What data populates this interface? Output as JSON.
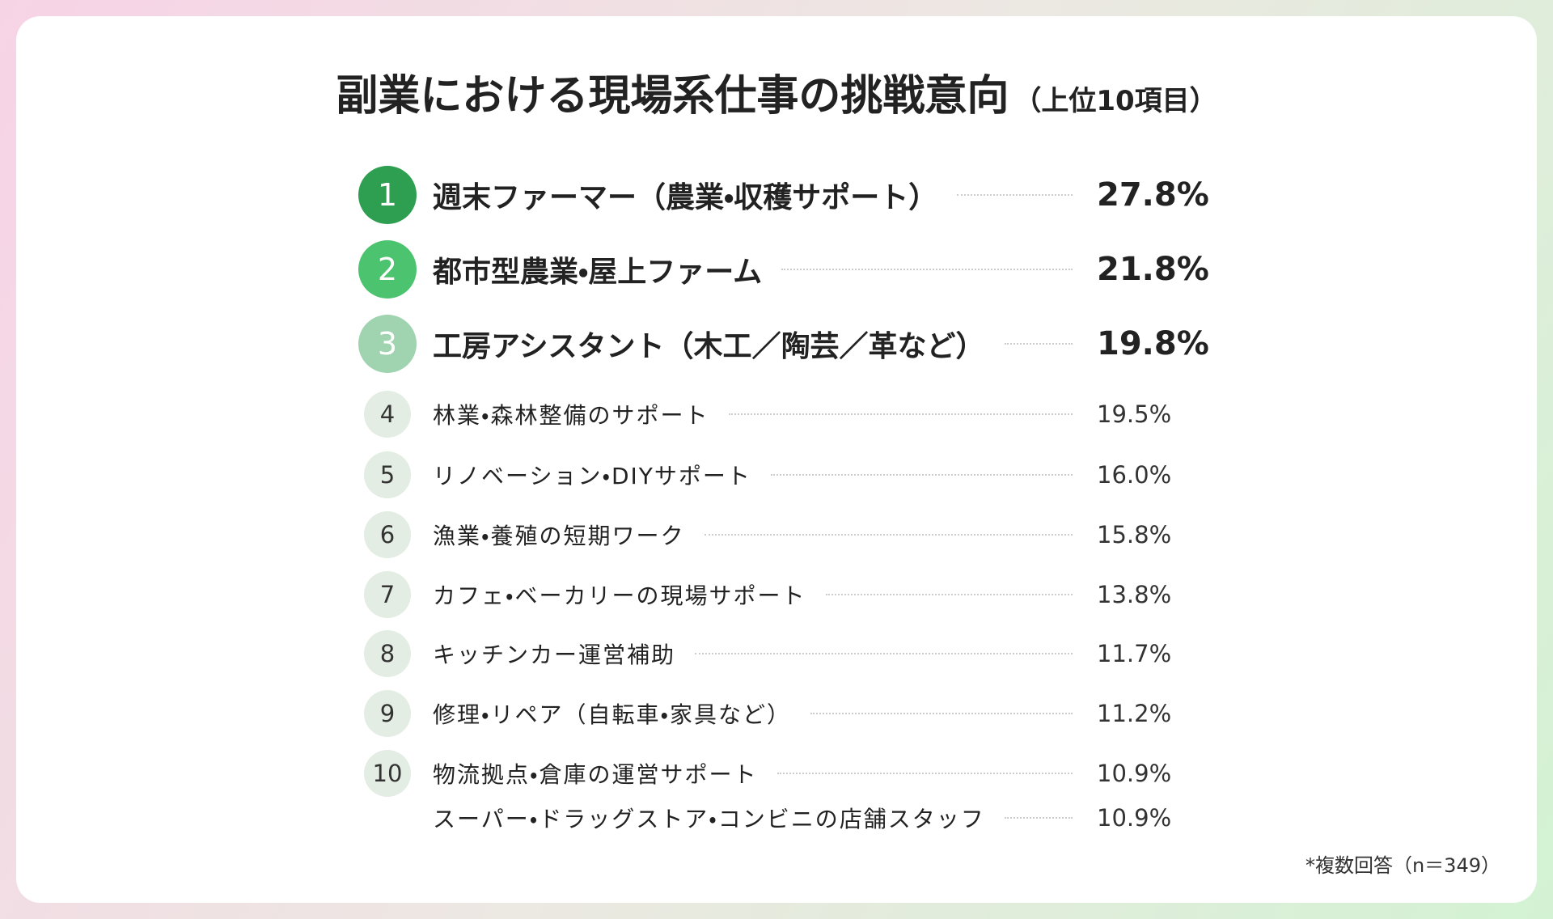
{
  "header": {
    "title": "副業における現場系仕事の挑戦意向",
    "subtitle": "（上位10項目）"
  },
  "items": [
    {
      "rank": "1",
      "label": "週末ファーマー（農業・収穫サポート）",
      "value": "27.8%"
    },
    {
      "rank": "2",
      "label": "都市型農業・屋上ファーム",
      "value": "21.8%"
    },
    {
      "rank": "3",
      "label": "工房アシスタント（木工／陶芸／革など）",
      "value": "19.8%"
    },
    {
      "rank": "4",
      "label": "林業・森林整備のサポート",
      "value": "19.5%"
    },
    {
      "rank": "5",
      "label": "リノベーション・DIYサポート",
      "value": "16.0%"
    },
    {
      "rank": "6",
      "label": "漁業・養殖の短期ワーク",
      "value": "15.8%"
    },
    {
      "rank": "7",
      "label": "カフェ・ベーカリーの現場サポート",
      "value": "13.8%"
    },
    {
      "rank": "8",
      "label": "キッチンカー運営補助",
      "value": "11.7%"
    },
    {
      "rank": "9",
      "label": "修理・リペア（自転車・家具など）",
      "value": "11.2%"
    },
    {
      "rank": "10",
      "label": "物流拠点・倉庫の運営サポート",
      "value": "10.9%"
    },
    {
      "label": "スーパー・ドラッグストア・コンビニの店舗スタッフ",
      "value": "10.9%"
    }
  ],
  "footnote": "*複数回答（n＝349）"
}
